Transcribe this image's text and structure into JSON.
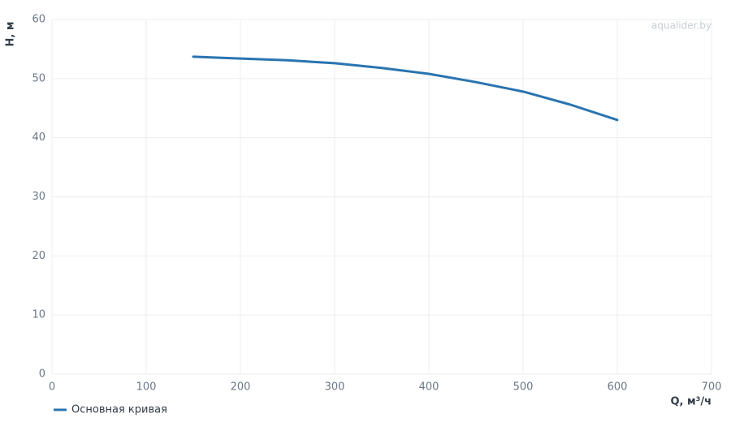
{
  "chart_data": {
    "type": "line",
    "x_label": "Q, м³/ч",
    "y_label": "H, м",
    "watermark": "aqualider.by",
    "x": [
      150,
      200,
      250,
      300,
      350,
      400,
      450,
      500,
      550,
      600
    ],
    "series": [
      {
        "name": "Основная кривая",
        "color": "#2a74b0",
        "values": [
          53.7,
          53.4,
          53.1,
          52.6,
          51.8,
          50.8,
          49.4,
          47.8,
          45.6,
          43.0
        ]
      }
    ],
    "xlim": [
      0,
      700
    ],
    "xticks": [
      0,
      100,
      200,
      300,
      400,
      500,
      600,
      700
    ],
    "ylim": [
      0,
      60
    ],
    "yticks": [
      0,
      10,
      20,
      30,
      40,
      50,
      60
    ],
    "grid": true,
    "legend": "bottom-left"
  }
}
